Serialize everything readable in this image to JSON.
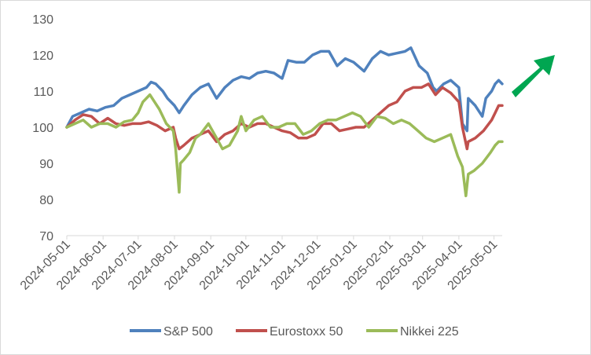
{
  "chart_data": {
    "type": "line",
    "title": "",
    "xlabel": "",
    "ylabel": "",
    "ylim": [
      70,
      130
    ],
    "yticks": [
      70,
      80,
      90,
      100,
      110,
      120,
      130
    ],
    "xlim": [
      "2024-05-01",
      "2025-05-08"
    ],
    "xticks": [
      "2024-05-01",
      "2024-06-01",
      "2024-07-01",
      "2024-08-01",
      "2024-09-01",
      "2024-10-01",
      "2024-11-01",
      "2024-12-01",
      "2025-01-01",
      "2025-02-01",
      "2025-03-01",
      "2025-04-01",
      "2025-05-01"
    ],
    "grid": false,
    "legend_position": "bottom",
    "annotation": "up-arrow",
    "series": [
      {
        "name": "S&P 500",
        "color": "#4f81bd",
        "points": [
          [
            "2024-05-01",
            100
          ],
          [
            "2024-05-06",
            103
          ],
          [
            "2024-05-13",
            104
          ],
          [
            "2024-05-20",
            105
          ],
          [
            "2024-05-27",
            104.5
          ],
          [
            "2024-06-03",
            105.5
          ],
          [
            "2024-06-10",
            106
          ],
          [
            "2024-06-17",
            108
          ],
          [
            "2024-06-24",
            109
          ],
          [
            "2024-07-01",
            110
          ],
          [
            "2024-07-08",
            111
          ],
          [
            "2024-07-12",
            112.5
          ],
          [
            "2024-07-16",
            112
          ],
          [
            "2024-07-22",
            110
          ],
          [
            "2024-07-26",
            108
          ],
          [
            "2024-08-01",
            106
          ],
          [
            "2024-08-05",
            104
          ],
          [
            "2024-08-09",
            106
          ],
          [
            "2024-08-16",
            109
          ],
          [
            "2024-08-23",
            111
          ],
          [
            "2024-08-30",
            112
          ],
          [
            "2024-09-06",
            108
          ],
          [
            "2024-09-13",
            111
          ],
          [
            "2024-09-20",
            113
          ],
          [
            "2024-09-27",
            114
          ],
          [
            "2024-10-04",
            113.5
          ],
          [
            "2024-10-11",
            115
          ],
          [
            "2024-10-18",
            115.5
          ],
          [
            "2024-10-25",
            115
          ],
          [
            "2024-11-01",
            113.5
          ],
          [
            "2024-11-06",
            118.5
          ],
          [
            "2024-11-13",
            118
          ],
          [
            "2024-11-20",
            118
          ],
          [
            "2024-11-27",
            120
          ],
          [
            "2024-12-04",
            121
          ],
          [
            "2024-12-11",
            121
          ],
          [
            "2024-12-18",
            117
          ],
          [
            "2024-12-25",
            119
          ],
          [
            "2025-01-01",
            118
          ],
          [
            "2025-01-10",
            115.5
          ],
          [
            "2025-01-17",
            119
          ],
          [
            "2025-01-24",
            121
          ],
          [
            "2025-01-31",
            120
          ],
          [
            "2025-02-07",
            120.5
          ],
          [
            "2025-02-14",
            121
          ],
          [
            "2025-02-19",
            122
          ],
          [
            "2025-02-26",
            117
          ],
          [
            "2025-03-05",
            115
          ],
          [
            "2025-03-10",
            111
          ],
          [
            "2025-03-13",
            110
          ],
          [
            "2025-03-19",
            112
          ],
          [
            "2025-03-25",
            113
          ],
          [
            "2025-04-01",
            111
          ],
          [
            "2025-04-04",
            101
          ],
          [
            "2025-04-08",
            99
          ],
          [
            "2025-04-09",
            108
          ],
          [
            "2025-04-15",
            106
          ],
          [
            "2025-04-21",
            103
          ],
          [
            "2025-04-24",
            108
          ],
          [
            "2025-04-29",
            110
          ],
          [
            "2025-05-02",
            112
          ],
          [
            "2025-05-05",
            113
          ],
          [
            "2025-05-08",
            112
          ]
        ]
      },
      {
        "name": "Eurostoxx 50",
        "color": "#c0504d",
        "points": [
          [
            "2024-05-01",
            100
          ],
          [
            "2024-05-08",
            102
          ],
          [
            "2024-05-15",
            103.5
          ],
          [
            "2024-05-22",
            103
          ],
          [
            "2024-05-29",
            101
          ],
          [
            "2024-06-05",
            102.5
          ],
          [
            "2024-06-12",
            101
          ],
          [
            "2024-06-19",
            100.5
          ],
          [
            "2024-06-26",
            101
          ],
          [
            "2024-07-03",
            101
          ],
          [
            "2024-07-10",
            101.5
          ],
          [
            "2024-07-17",
            100.5
          ],
          [
            "2024-07-24",
            99
          ],
          [
            "2024-07-31",
            100
          ],
          [
            "2024-08-02",
            97
          ],
          [
            "2024-08-05",
            94
          ],
          [
            "2024-08-09",
            95
          ],
          [
            "2024-08-16",
            97
          ],
          [
            "2024-08-23",
            98
          ],
          [
            "2024-08-30",
            99
          ],
          [
            "2024-09-06",
            96
          ],
          [
            "2024-09-13",
            98
          ],
          [
            "2024-09-20",
            99
          ],
          [
            "2024-09-27",
            101
          ],
          [
            "2024-10-04",
            100
          ],
          [
            "2024-10-11",
            101
          ],
          [
            "2024-10-18",
            101
          ],
          [
            "2024-10-25",
            100
          ],
          [
            "2024-11-01",
            99
          ],
          [
            "2024-11-08",
            98.5
          ],
          [
            "2024-11-15",
            97
          ],
          [
            "2024-11-22",
            97
          ],
          [
            "2024-11-29",
            98
          ],
          [
            "2024-12-06",
            101
          ],
          [
            "2024-12-13",
            101
          ],
          [
            "2024-12-20",
            99
          ],
          [
            "2024-12-27",
            99.5
          ],
          [
            "2025-01-03",
            100
          ],
          [
            "2025-01-10",
            100
          ],
          [
            "2025-01-17",
            102
          ],
          [
            "2025-01-24",
            104
          ],
          [
            "2025-01-31",
            106
          ],
          [
            "2025-02-07",
            107
          ],
          [
            "2025-02-14",
            110
          ],
          [
            "2025-02-21",
            111
          ],
          [
            "2025-02-28",
            111
          ],
          [
            "2025-03-06",
            112
          ],
          [
            "2025-03-12",
            109
          ],
          [
            "2025-03-18",
            111
          ],
          [
            "2025-03-25",
            109.5
          ],
          [
            "2025-04-01",
            107
          ],
          [
            "2025-04-04",
            100
          ],
          [
            "2025-04-08",
            94
          ],
          [
            "2025-04-09",
            96
          ],
          [
            "2025-04-15",
            97
          ],
          [
            "2025-04-22",
            99
          ],
          [
            "2025-04-29",
            102
          ],
          [
            "2025-05-02",
            104
          ],
          [
            "2025-05-05",
            106
          ],
          [
            "2025-05-08",
            106
          ]
        ]
      },
      {
        "name": "Nikkei 225",
        "color": "#9bbb59",
        "points": [
          [
            "2024-05-01",
            100
          ],
          [
            "2024-05-08",
            101
          ],
          [
            "2024-05-15",
            102
          ],
          [
            "2024-05-22",
            100
          ],
          [
            "2024-05-29",
            101
          ],
          [
            "2024-06-05",
            101
          ],
          [
            "2024-06-12",
            100
          ],
          [
            "2024-06-19",
            101.5
          ],
          [
            "2024-06-26",
            102
          ],
          [
            "2024-07-01",
            104
          ],
          [
            "2024-07-05",
            107
          ],
          [
            "2024-07-11",
            109
          ],
          [
            "2024-07-15",
            107
          ],
          [
            "2024-07-19",
            105
          ],
          [
            "2024-07-25",
            101
          ],
          [
            "2024-07-31",
            99
          ],
          [
            "2024-08-02",
            94
          ],
          [
            "2024-08-05",
            82
          ],
          [
            "2024-08-06",
            90
          ],
          [
            "2024-08-09",
            91
          ],
          [
            "2024-08-14",
            93
          ],
          [
            "2024-08-19",
            97
          ],
          [
            "2024-08-23",
            98
          ],
          [
            "2024-08-30",
            101
          ],
          [
            "2024-09-06",
            97
          ],
          [
            "2024-09-11",
            94
          ],
          [
            "2024-09-17",
            95
          ],
          [
            "2024-09-24",
            99
          ],
          [
            "2024-09-27",
            103
          ],
          [
            "2024-10-01",
            99
          ],
          [
            "2024-10-08",
            102
          ],
          [
            "2024-10-15",
            103
          ],
          [
            "2024-10-22",
            100
          ],
          [
            "2024-10-29",
            100
          ],
          [
            "2024-11-05",
            101
          ],
          [
            "2024-11-12",
            101
          ],
          [
            "2024-11-19",
            98
          ],
          [
            "2024-11-26",
            99
          ],
          [
            "2024-12-03",
            101
          ],
          [
            "2024-12-10",
            102
          ],
          [
            "2024-12-17",
            102
          ],
          [
            "2024-12-24",
            103
          ],
          [
            "2024-12-31",
            104
          ],
          [
            "2025-01-07",
            103
          ],
          [
            "2025-01-14",
            100
          ],
          [
            "2025-01-21",
            103
          ],
          [
            "2025-01-28",
            102.5
          ],
          [
            "2025-02-04",
            101
          ],
          [
            "2025-02-11",
            102
          ],
          [
            "2025-02-18",
            101
          ],
          [
            "2025-02-25",
            99
          ],
          [
            "2025-03-04",
            97
          ],
          [
            "2025-03-11",
            96
          ],
          [
            "2025-03-18",
            97
          ],
          [
            "2025-03-25",
            98
          ],
          [
            "2025-03-31",
            92
          ],
          [
            "2025-04-04",
            89
          ],
          [
            "2025-04-07",
            81
          ],
          [
            "2025-04-08",
            84
          ],
          [
            "2025-04-09",
            87
          ],
          [
            "2025-04-14",
            88
          ],
          [
            "2025-04-21",
            90
          ],
          [
            "2025-04-28",
            93
          ],
          [
            "2025-05-02",
            95
          ],
          [
            "2025-05-05",
            96
          ],
          [
            "2025-05-08",
            96
          ]
        ]
      }
    ]
  }
}
